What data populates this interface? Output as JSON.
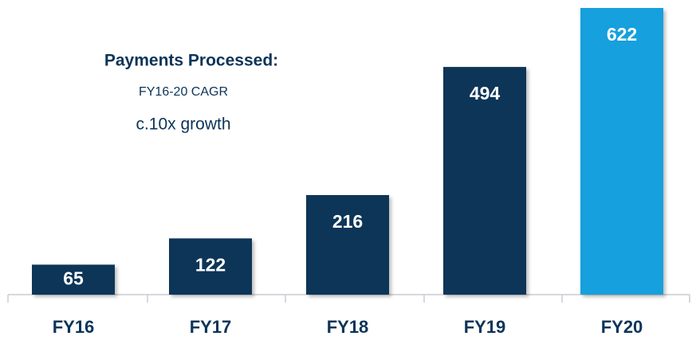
{
  "chart_data": {
    "type": "bar",
    "annotations": [
      "Payments Processed:",
      "FY16-20 CAGR",
      "c.10x growth"
    ],
    "categories": [
      "FY16",
      "FY17",
      "FY18",
      "FY19",
      "FY20"
    ],
    "values": [
      65,
      122,
      216,
      494,
      622
    ],
    "colors": [
      "#0c3458",
      "#0c3458",
      "#0c3458",
      "#0c3458",
      "#12a0dd"
    ]
  }
}
